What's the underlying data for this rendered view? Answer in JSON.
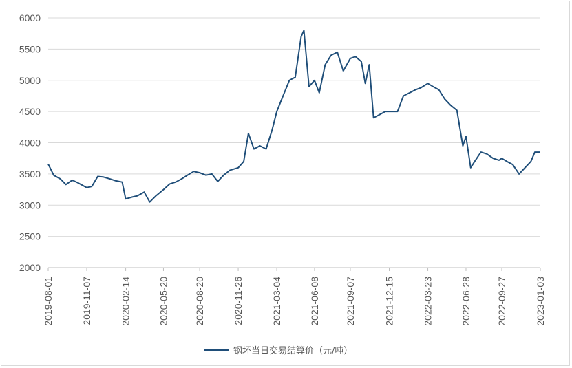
{
  "chart_data": {
    "type": "line",
    "title": "",
    "xlabel": "",
    "ylabel": "",
    "ylim": [
      2000,
      6000
    ],
    "y_ticks": [
      2000,
      2500,
      3000,
      3500,
      4000,
      4500,
      5000,
      5500,
      6000
    ],
    "x_tick_labels": [
      "2019-08-01",
      "2019-11-07",
      "2020-02-14",
      "2020-05-20",
      "2020-08-20",
      "2020-11-26",
      "2021-03-04",
      "2021-06-08",
      "2021-09-07",
      "2021-12-15",
      "2022-03-23",
      "2022-06-28",
      "2022-09-27",
      "2023-01-03"
    ],
    "grid": "horizontal",
    "legend_position": "bottom",
    "line_color": "#1f4e79",
    "series": [
      {
        "name": "钢坯当日交易结算价（元/吨）",
        "x": [
          "2019-08-01",
          "2019-08-15",
          "2019-09-01",
          "2019-09-15",
          "2019-10-01",
          "2019-10-15",
          "2019-11-07",
          "2019-11-20",
          "2019-12-05",
          "2019-12-20",
          "2020-01-05",
          "2020-01-20",
          "2020-02-05",
          "2020-02-14",
          "2020-03-01",
          "2020-03-15",
          "2020-04-01",
          "2020-04-15",
          "2020-05-01",
          "2020-05-20",
          "2020-06-05",
          "2020-06-20",
          "2020-07-05",
          "2020-07-20",
          "2020-08-05",
          "2020-08-20",
          "2020-09-05",
          "2020-09-20",
          "2020-10-05",
          "2020-10-20",
          "2020-11-05",
          "2020-11-26",
          "2020-12-10",
          "2020-12-22",
          "2021-01-05",
          "2021-01-20",
          "2021-02-05",
          "2021-02-20",
          "2021-03-04",
          "2021-03-20",
          "2021-04-05",
          "2021-04-20",
          "2021-05-05",
          "2021-05-12",
          "2021-05-25",
          "2021-06-08",
          "2021-06-20",
          "2021-07-05",
          "2021-07-20",
          "2021-08-05",
          "2021-08-20",
          "2021-09-07",
          "2021-09-20",
          "2021-10-05",
          "2021-10-15",
          "2021-10-25",
          "2021-11-05",
          "2021-11-20",
          "2021-12-05",
          "2021-12-15",
          "2022-01-05",
          "2022-01-20",
          "2022-02-05",
          "2022-02-20",
          "2022-03-05",
          "2022-03-23",
          "2022-04-05",
          "2022-04-20",
          "2022-05-05",
          "2022-05-20",
          "2022-06-05",
          "2022-06-20",
          "2022-06-28",
          "2022-07-10",
          "2022-07-20",
          "2022-08-05",
          "2022-08-20",
          "2022-09-05",
          "2022-09-20",
          "2022-09-27",
          "2022-10-10",
          "2022-10-25",
          "2022-11-10",
          "2022-11-25",
          "2022-12-10",
          "2022-12-20",
          "2023-01-03"
        ],
        "values": [
          3660,
          3480,
          3420,
          3330,
          3400,
          3360,
          3280,
          3300,
          3460,
          3450,
          3420,
          3390,
          3370,
          3100,
          3130,
          3150,
          3210,
          3050,
          3150,
          3250,
          3340,
          3370,
          3420,
          3480,
          3540,
          3520,
          3480,
          3500,
          3380,
          3480,
          3560,
          3600,
          3700,
          4150,
          3900,
          3950,
          3900,
          4200,
          4500,
          4750,
          5000,
          5050,
          5700,
          5800,
          4900,
          5000,
          4800,
          5250,
          5400,
          5450,
          5150,
          5350,
          5380,
          5300,
          4950,
          5250,
          4400,
          4450,
          4500,
          4500,
          4500,
          4750,
          4800,
          4850,
          4880,
          4950,
          4900,
          4850,
          4700,
          4600,
          4520,
          3950,
          4100,
          3600,
          3700,
          3850,
          3820,
          3750,
          3720,
          3750,
          3700,
          3650,
          3500,
          3600,
          3700,
          3850,
          3850
        ]
      }
    ]
  }
}
